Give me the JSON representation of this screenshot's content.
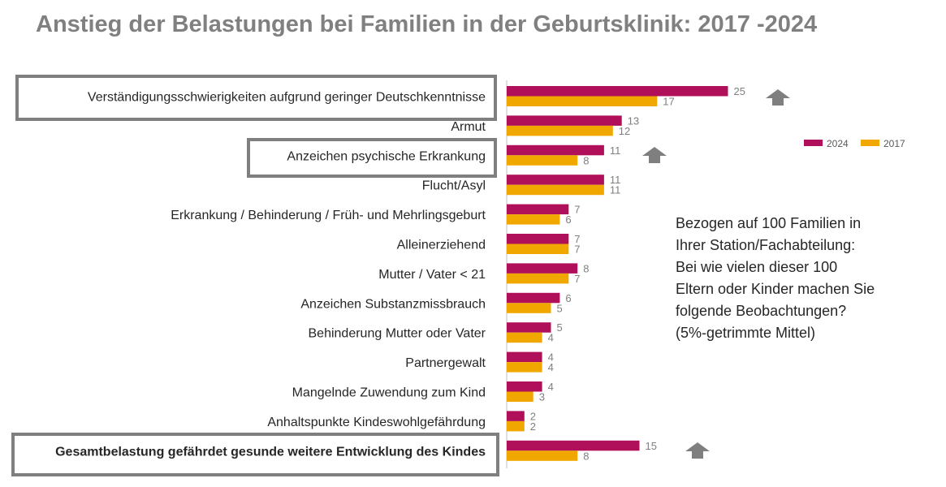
{
  "title": "Anstieg der Belastungen bei Familien in der Geburtsklinik: 2017 -2024",
  "note": "Bezogen auf 100 Familien in\nIhrer Station/Fachabteilung:\nBei wie vielen dieser 100\nEltern oder Kinder machen Sie\nfolgende Beobachtungen?\n(5%-getrimmte Mittel)",
  "colors": {
    "2024": "#b0105a",
    "2017": "#f0a800",
    "box": "#7f7f7f",
    "arrow": "#7f7f7f"
  },
  "chart_data": {
    "type": "bar",
    "orientation": "horizontal",
    "categories": [
      "Verständigungsschwierigkeiten aufgrund geringer Deutschkenntnisse",
      "Armut",
      "Anzeichen psychische Erkrankung",
      "Flucht/Asyl",
      "Erkrankung / Behinderung / Früh- und Mehrlingsgeburt",
      "Alleinerziehend",
      "Mutter / Vater < 21",
      "Anzeichen Substanzmissbrauch",
      "Behinderung Mutter oder Vater",
      "Partnergewalt",
      "Mangelnde Zuwendung zum Kind",
      "Anhaltspunkte Kindeswohlgefährdung",
      "Gesamtbelastung gefährdet gesunde weitere Entwicklung des Kindes"
    ],
    "series": [
      {
        "name": "2024",
        "values": [
          25,
          13,
          11,
          11,
          7,
          7,
          8,
          6,
          5,
          4,
          4,
          2,
          15
        ]
      },
      {
        "name": "2017",
        "values": [
          17,
          12,
          8,
          11,
          6,
          7,
          7,
          5,
          4,
          4,
          3,
          2,
          8
        ]
      }
    ],
    "xlim": [
      0,
      30
    ],
    "grid": false,
    "legend": "top-right",
    "highlighted_categories": [
      0,
      2,
      12
    ],
    "bold_categories": [
      12
    ],
    "increase_arrows": [
      0,
      2,
      12
    ]
  }
}
